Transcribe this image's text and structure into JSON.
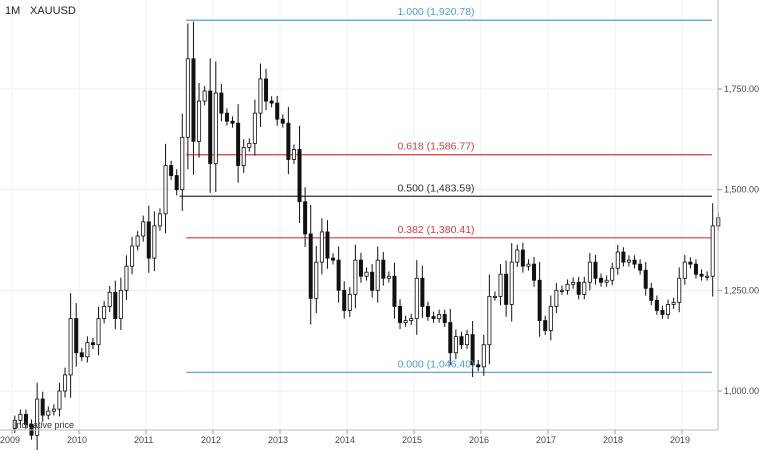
{
  "header": {
    "timeframe": "1M",
    "symbol": "XAUUSD"
  },
  "footnote": "Indicative price",
  "chart_data": {
    "type": "candlestick",
    "interval": "1M",
    "symbol": "XAUUSD",
    "ylim": [
      880,
      1960
    ],
    "xlim": [
      2009.0,
      2019.65
    ],
    "y_ticks": [
      {
        "value": 1000,
        "label": "1,000.00"
      },
      {
        "value": 1250,
        "label": "1,250.00"
      },
      {
        "value": 1500,
        "label": "1,500.00"
      },
      {
        "value": 1750,
        "label": "1,750.00"
      }
    ],
    "x_ticks": [
      {
        "value": 2009,
        "label": "2009"
      },
      {
        "value": 2010,
        "label": "2010"
      },
      {
        "value": 2011,
        "label": "2011"
      },
      {
        "value": 2012,
        "label": "2012"
      },
      {
        "value": 2013,
        "label": "2013"
      },
      {
        "value": 2014,
        "label": "2014"
      },
      {
        "value": 2015,
        "label": "2015"
      },
      {
        "value": 2016,
        "label": "2016"
      },
      {
        "value": 2017,
        "label": "2017"
      },
      {
        "value": 2018,
        "label": "2018"
      },
      {
        "value": 2019,
        "label": "2019"
      }
    ],
    "fib_levels": [
      {
        "ratio": "1.000",
        "value": 1920.78,
        "label": "1.000 (1,920.78)",
        "color": "#4a9fd4",
        "x_start": 2011.6
      },
      {
        "ratio": "0.618",
        "value": 1586.77,
        "label": "0.618 (1,586.77)",
        "color": "#d93a3a",
        "x_start": 2011.6
      },
      {
        "ratio": "0.500",
        "value": 1483.59,
        "label": "0.500 (1,483.59)",
        "color": "#333333",
        "x_start": 2011.5
      },
      {
        "ratio": "0.382",
        "value": 1380.41,
        "label": "0.382 (1,380.41)",
        "color": "#d93a3a",
        "x_start": 2011.6
      },
      {
        "ratio": "0.000",
        "value": 1046.4,
        "label": "0.000 (1,046.40)",
        "color": "#4a9fd4",
        "x_start": 2011.6
      }
    ],
    "closes": [
      927,
      942,
      917,
      890,
      980,
      940,
      950,
      955,
      1000,
      1040,
      1180,
      1095,
      1085,
      1120,
      1115,
      1180,
      1210,
      1245,
      1180,
      1250,
      1310,
      1360,
      1385,
      1420,
      1330,
      1410,
      1440,
      1560,
      1535,
      1500,
      1630,
      1825,
      1620,
      1720,
      1745,
      1565,
      1740,
      1690,
      1670,
      1665,
      1560,
      1605,
      1615,
      1690,
      1775,
      1720,
      1715,
      1675,
      1665,
      1575,
      1600,
      1470,
      1390,
      1230,
      1320,
      1395,
      1330,
      1325,
      1250,
      1200,
      1240,
      1325,
      1285,
      1295,
      1250,
      1325,
      1280,
      1285,
      1210,
      1170,
      1175,
      1180,
      1280,
      1210,
      1185,
      1180,
      1190,
      1170,
      1095,
      1135,
      1115,
      1140,
      1065,
      1060,
      1115,
      1235,
      1235,
      1290,
      1215,
      1320,
      1350,
      1310,
      1315,
      1275,
      1175,
      1150,
      1210,
      1250,
      1250,
      1265,
      1270,
      1240,
      1270,
      1320,
      1280,
      1270,
      1275,
      1305,
      1345,
      1320,
      1325,
      1315,
      1300,
      1255,
      1225,
      1200,
      1190,
      1215,
      1220,
      1280,
      1320,
      1315,
      1290,
      1285,
      1285,
      1410,
      1430
    ]
  }
}
